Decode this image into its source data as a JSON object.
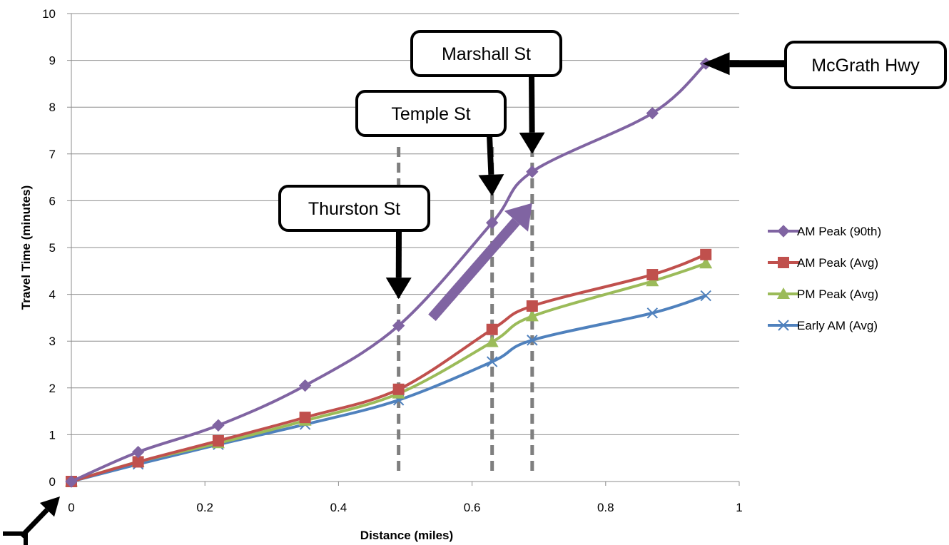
{
  "chart_data": {
    "type": "line",
    "xlabel": "Distance (miles)",
    "ylabel": "Travel Time (minutes)",
    "xlim": [
      0,
      1
    ],
    "ylim": [
      0,
      10
    ],
    "xticks": [
      0,
      0.2,
      0.4,
      0.6,
      0.8,
      1
    ],
    "xtick_labels": [
      "0",
      "0.2",
      "0.4",
      "0.6",
      "0.8",
      "1"
    ],
    "yticks": [
      0,
      1,
      2,
      3,
      4,
      5,
      6,
      7,
      8,
      9,
      10
    ],
    "ytick_labels": [
      "0",
      "1",
      "2",
      "3",
      "4",
      "5",
      "6",
      "7",
      "8",
      "9",
      "10"
    ],
    "grid": "horizontal",
    "legend_position": "right",
    "series": [
      {
        "name": "AM Peak (90th)",
        "color": "#8064a2",
        "marker": "diamond",
        "points": [
          [
            0,
            0
          ],
          [
            0.1,
            0.63
          ],
          [
            0.22,
            1.2
          ],
          [
            0.35,
            2.05
          ],
          [
            0.49,
            3.33
          ],
          [
            0.63,
            5.53
          ],
          [
            0.69,
            6.62
          ],
          [
            0.87,
            7.87
          ],
          [
            0.95,
            8.93
          ]
        ]
      },
      {
        "name": "AM Peak (Avg)",
        "color": "#c0504d",
        "marker": "square",
        "points": [
          [
            0,
            0
          ],
          [
            0.1,
            0.42
          ],
          [
            0.22,
            0.87
          ],
          [
            0.35,
            1.37
          ],
          [
            0.49,
            1.97
          ],
          [
            0.63,
            3.25
          ],
          [
            0.69,
            3.75
          ],
          [
            0.87,
            4.42
          ],
          [
            0.95,
            4.85
          ]
        ]
      },
      {
        "name": "PM Peak (Avg)",
        "color": "#9bbb59",
        "marker": "triangle",
        "points": [
          [
            0,
            0
          ],
          [
            0.1,
            0.42
          ],
          [
            0.22,
            0.82
          ],
          [
            0.35,
            1.3
          ],
          [
            0.49,
            1.88
          ],
          [
            0.63,
            2.98
          ],
          [
            0.69,
            3.53
          ],
          [
            0.87,
            4.28
          ],
          [
            0.95,
            4.66
          ]
        ]
      },
      {
        "name": "Early AM (Avg)",
        "color": "#4f81bd",
        "marker": "x",
        "points": [
          [
            0,
            0
          ],
          [
            0.1,
            0.37
          ],
          [
            0.22,
            0.79
          ],
          [
            0.35,
            1.22
          ],
          [
            0.49,
            1.74
          ],
          [
            0.63,
            2.56
          ],
          [
            0.69,
            3.02
          ],
          [
            0.87,
            3.6
          ],
          [
            0.95,
            3.97
          ]
        ]
      }
    ],
    "reference_lines": [
      0.49,
      0.63,
      0.69
    ],
    "callouts": [
      {
        "label": "Thurston St",
        "arrow_points_to": [
          0.49,
          3.9
        ]
      },
      {
        "label": "Temple St",
        "arrow_points_to": [
          0.63,
          6.1
        ]
      },
      {
        "label": "Marshall St",
        "arrow_points_to": [
          0.69,
          7.0
        ]
      },
      {
        "label": "McGrath Hwy",
        "arrow_points_to": [
          0.96,
          8.93
        ]
      }
    ],
    "annotations": [
      {
        "type": "trend-arrow",
        "color": "#8064a2",
        "from": [
          0.54,
          3.5
        ],
        "to": [
          0.69,
          5.95
        ]
      },
      {
        "type": "start-arrow",
        "points_to": [
          0,
          0
        ]
      }
    ]
  }
}
